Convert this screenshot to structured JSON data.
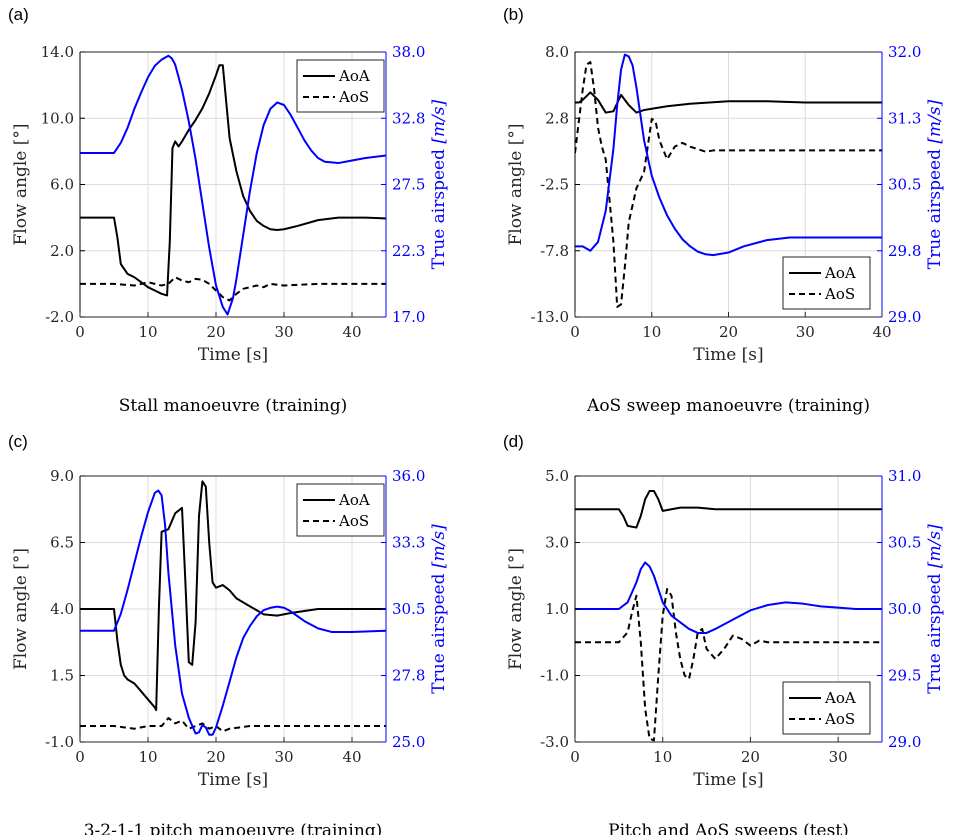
{
  "figure": {
    "accent_left": "#000000",
    "accent_right": "#0000ff",
    "grid_color": "#dcdcdc"
  },
  "chart_data": [
    {
      "panel": "(a)",
      "caption": "Stall manoeuvre (training)",
      "type": "line",
      "xlabel": "Time [s]",
      "ylabel_left": "Flow angle [°]",
      "ylabel_right": "True airspeed [m/s]",
      "xlim": [
        0,
        45
      ],
      "xticks": [
        0,
        10,
        20,
        30,
        40
      ],
      "xtick_labels": [
        "0",
        "10",
        "20",
        "30",
        "40"
      ],
      "ylim_left": [
        -2,
        14
      ],
      "yticks_left": [
        -2,
        2,
        6,
        10,
        14
      ],
      "ytick_labels_left": [
        "-2.0",
        "2.0",
        "6.0",
        "10.0",
        "14.0"
      ],
      "ylim_right": [
        17,
        38
      ],
      "yticks_right": [
        17,
        22.25,
        27.5,
        32.75,
        38
      ],
      "ytick_labels_right": [
        "17.0",
        "22.3",
        "27.5",
        "32.8",
        "38.0"
      ],
      "grid": true,
      "legend_position": "top-right",
      "series": [
        {
          "name": "AoA",
          "axis": "left",
          "style": "solid",
          "color": "#000000",
          "x": [
            0,
            5,
            5.5,
            6,
            7,
            8,
            9,
            10,
            11,
            12,
            12.8,
            13.2,
            13.6,
            14,
            14.5,
            15,
            16,
            17,
            18,
            19,
            20,
            20.5,
            21,
            21.5,
            22,
            23,
            24,
            25,
            26,
            27,
            28,
            29,
            30,
            32,
            35,
            38,
            40,
            42,
            45
          ],
          "y": [
            4.0,
            4.0,
            2.8,
            1.2,
            0.6,
            0.4,
            0.1,
            -0.2,
            -0.4,
            -0.6,
            -0.7,
            2.5,
            8.2,
            8.6,
            8.3,
            8.6,
            9.3,
            9.9,
            10.6,
            11.5,
            12.6,
            13.2,
            13.2,
            11.0,
            8.8,
            6.8,
            5.3,
            4.4,
            3.8,
            3.5,
            3.3,
            3.25,
            3.3,
            3.5,
            3.85,
            4.0,
            4.0,
            4.0,
            3.95
          ]
        },
        {
          "name": "AoS",
          "axis": "left",
          "style": "dashed",
          "color": "#000000",
          "x": [
            0,
            5,
            8,
            10,
            12,
            13,
            14,
            15,
            16,
            17,
            18,
            19,
            20,
            21,
            22,
            23,
            24,
            25,
            26,
            27,
            28,
            30,
            35,
            40,
            45
          ],
          "y": [
            0.0,
            0.0,
            -0.1,
            0.1,
            -0.1,
            0.0,
            0.4,
            0.2,
            0.1,
            0.3,
            0.25,
            0.0,
            -0.4,
            -0.8,
            -1.0,
            -0.6,
            -0.3,
            -0.2,
            -0.1,
            -0.2,
            0.0,
            -0.1,
            0.0,
            0.0,
            0.0
          ]
        },
        {
          "name": "True airspeed",
          "axis": "right",
          "style": "solid",
          "color": "#0000ff",
          "x": [
            0,
            5,
            6,
            7,
            8,
            9,
            10,
            11,
            12,
            13,
            13.5,
            14,
            15,
            16,
            17,
            18,
            19,
            20,
            21,
            21.7,
            22.5,
            23,
            24,
            25,
            26,
            27,
            28,
            29,
            30,
            31,
            32,
            33,
            34,
            35,
            36,
            38,
            40,
            42,
            45
          ],
          "y": [
            30.0,
            30.0,
            30.8,
            32.0,
            33.5,
            34.8,
            36.0,
            36.9,
            37.4,
            37.7,
            37.5,
            37.0,
            35.0,
            32.5,
            29.5,
            26.0,
            22.5,
            19.5,
            17.8,
            17.2,
            18.5,
            20.0,
            23.5,
            27.0,
            30.0,
            32.2,
            33.5,
            34.0,
            33.8,
            33.0,
            32.0,
            31.0,
            30.2,
            29.6,
            29.3,
            29.2,
            29.4,
            29.6,
            29.8
          ]
        }
      ]
    },
    {
      "panel": "(b)",
      "caption": "AoS sweep manoeuvre (training)",
      "type": "line",
      "xlabel": "Time [s]",
      "ylabel_left": "Flow angle [°]",
      "ylabel_right": "True airspeed [m/s]",
      "xlim": [
        0,
        40
      ],
      "xticks": [
        0,
        10,
        20,
        30,
        40
      ],
      "xtick_labels": [
        "0",
        "10",
        "20",
        "30",
        "40"
      ],
      "ylim_left": [
        -13,
        8
      ],
      "yticks_left": [
        -13,
        -7.75,
        -2.5,
        2.75,
        8
      ],
      "ytick_labels_left": [
        "-13.0",
        "-7.8",
        "-2.5",
        "2.8",
        "8.0"
      ],
      "ylim_right": [
        29,
        32
      ],
      "yticks_right": [
        29,
        29.75,
        30.5,
        31.25,
        32
      ],
      "ytick_labels_right": [
        "29.0",
        "29.8",
        "30.5",
        "31.3",
        "32.0"
      ],
      "grid": true,
      "legend_position": "bottom-right",
      "series": [
        {
          "name": "AoA",
          "axis": "left",
          "style": "solid",
          "color": "#000000",
          "x": [
            0,
            0.5,
            1,
            2,
            3,
            4,
            5,
            6,
            7,
            8,
            9,
            10,
            12,
            15,
            20,
            25,
            30,
            35,
            40
          ],
          "y": [
            4.0,
            4.0,
            4.2,
            4.8,
            4.2,
            3.2,
            3.3,
            4.6,
            3.8,
            3.2,
            3.4,
            3.5,
            3.7,
            3.9,
            4.1,
            4.1,
            4.0,
            4.0,
            4.0
          ]
        },
        {
          "name": "AoS",
          "axis": "left",
          "style": "dashed",
          "color": "#000000",
          "x": [
            0,
            0.5,
            1,
            1.5,
            2,
            2.5,
            3,
            3.5,
            4,
            5,
            5.5,
            6,
            6.5,
            7,
            8,
            9,
            10,
            10.5,
            11,
            12,
            13,
            14,
            15,
            16,
            17,
            18,
            20,
            25,
            30,
            35,
            40
          ],
          "y": [
            0.0,
            2.5,
            5.0,
            7.0,
            7.2,
            5.0,
            2.0,
            0.5,
            -0.5,
            -7.0,
            -12.2,
            -12.0,
            -9.0,
            -5.5,
            -2.8,
            -1.5,
            2.7,
            2.5,
            1.0,
            -0.5,
            0.5,
            0.8,
            0.5,
            0.3,
            0.1,
            0.2,
            0.2,
            0.2,
            0.2,
            0.2,
            0.2
          ]
        },
        {
          "name": "True airspeed",
          "axis": "right",
          "style": "solid",
          "color": "#0000ff",
          "x": [
            0,
            1,
            2,
            3,
            4,
            5,
            5.5,
            6,
            6.5,
            7,
            7.5,
            8,
            8.5,
            9,
            10,
            11,
            12,
            13,
            14,
            15,
            16,
            17,
            18,
            20,
            22,
            25,
            28,
            30,
            32,
            35,
            40
          ],
          "y": [
            29.8,
            29.8,
            29.75,
            29.85,
            30.2,
            30.9,
            31.4,
            31.8,
            31.97,
            31.95,
            31.85,
            31.6,
            31.3,
            31.0,
            30.6,
            30.35,
            30.15,
            30.0,
            29.88,
            29.8,
            29.74,
            29.71,
            29.7,
            29.73,
            29.8,
            29.87,
            29.9,
            29.9,
            29.9,
            29.9,
            29.9
          ]
        }
      ]
    },
    {
      "panel": "(c)",
      "caption": "3-2-1-1 pitch manoeuvre (training)",
      "type": "line",
      "xlabel": "Time [s]",
      "ylabel_left": "Flow angle [°]",
      "ylabel_right": "True airspeed [m/s]",
      "xlim": [
        0,
        45
      ],
      "xticks": [
        0,
        10,
        20,
        30,
        40
      ],
      "xtick_labels": [
        "0",
        "10",
        "20",
        "30",
        "40"
      ],
      "ylim_left": [
        -1,
        9
      ],
      "yticks_left": [
        -1,
        1.5,
        4,
        6.5,
        9
      ],
      "ytick_labels_left": [
        "-1.0",
        "1.5",
        "4.0",
        "6.5",
        "9.0"
      ],
      "ylim_right": [
        25,
        36
      ],
      "yticks_right": [
        25,
        27.75,
        30.5,
        33.25,
        36
      ],
      "ytick_labels_right": [
        "25.0",
        "27.8",
        "30.5",
        "33.3",
        "36.0"
      ],
      "grid": true,
      "legend_position": "top-right",
      "series": [
        {
          "name": "AoA",
          "axis": "left",
          "style": "solid",
          "color": "#000000",
          "x": [
            0,
            5,
            5.5,
            6,
            6.5,
            7,
            8,
            9,
            10,
            11,
            11.2,
            11.6,
            12,
            13,
            14,
            15,
            15.5,
            16,
            16.5,
            17,
            17.5,
            18,
            18.5,
            19,
            19.5,
            20,
            21,
            22,
            23,
            25,
            27,
            29,
            31,
            35,
            40,
            45
          ],
          "y": [
            4.0,
            4.0,
            2.8,
            1.9,
            1.5,
            1.35,
            1.2,
            0.9,
            0.6,
            0.3,
            0.2,
            4.0,
            6.9,
            7.0,
            7.6,
            7.8,
            5.0,
            2.0,
            1.9,
            3.5,
            7.5,
            8.8,
            8.6,
            6.5,
            5.0,
            4.8,
            4.9,
            4.7,
            4.4,
            4.1,
            3.8,
            3.75,
            3.85,
            4.0,
            4.0,
            4.0
          ]
        },
        {
          "name": "AoS",
          "axis": "left",
          "style": "dashed",
          "color": "#000000",
          "x": [
            0,
            5,
            8,
            10,
            12,
            13,
            14,
            15,
            16,
            17,
            18,
            19,
            20,
            21,
            22,
            25,
            30,
            35,
            40,
            45
          ],
          "y": [
            -0.4,
            -0.4,
            -0.5,
            -0.4,
            -0.4,
            -0.1,
            -0.3,
            -0.2,
            -0.5,
            -0.4,
            -0.3,
            -0.5,
            -0.4,
            -0.6,
            -0.5,
            -0.4,
            -0.4,
            -0.4,
            -0.4,
            -0.4
          ]
        },
        {
          "name": "True airspeed",
          "axis": "right",
          "style": "solid",
          "color": "#0000ff",
          "x": [
            0,
            5,
            6,
            7,
            8,
            9,
            10,
            11,
            11.5,
            12,
            12.5,
            13,
            14,
            15,
            16,
            17,
            17.5,
            18,
            18.5,
            19,
            19.5,
            20,
            21,
            22,
            23,
            24,
            25,
            26,
            27,
            28,
            29,
            30,
            31,
            32,
            33,
            34,
            35,
            37,
            40,
            45
          ],
          "y": [
            29.6,
            29.6,
            30.3,
            31.3,
            32.4,
            33.5,
            34.5,
            35.3,
            35.4,
            35.2,
            34.0,
            32.0,
            29.0,
            27.0,
            26.0,
            25.35,
            25.4,
            25.7,
            25.6,
            25.3,
            25.3,
            25.6,
            26.5,
            27.5,
            28.5,
            29.3,
            29.8,
            30.2,
            30.45,
            30.55,
            30.6,
            30.55,
            30.4,
            30.2,
            30.0,
            29.85,
            29.7,
            29.55,
            29.55,
            29.6
          ]
        }
      ]
    },
    {
      "panel": "(d)",
      "caption": "Pitch and AoS sweeps (test)",
      "type": "line",
      "xlabel": "Time [s]",
      "ylabel_left": "Flow angle [°]",
      "ylabel_right": "True airspeed [m/s]",
      "xlim": [
        0,
        35
      ],
      "xticks": [
        0,
        10,
        20,
        30
      ],
      "xtick_labels": [
        "0",
        "10",
        "20",
        "30"
      ],
      "ylim_left": [
        -3,
        5
      ],
      "yticks_left": [
        -3,
        -1,
        1,
        3,
        5
      ],
      "ytick_labels_left": [
        "-3.0",
        "-1.0",
        "1.0",
        "3.0",
        "5.0"
      ],
      "ylim_right": [
        29,
        31
      ],
      "yticks_right": [
        29,
        29.5,
        30,
        30.5,
        31
      ],
      "ytick_labels_right": [
        "29.0",
        "29.5",
        "30.0",
        "30.5",
        "31.0"
      ],
      "grid": true,
      "legend_position": "bottom-right",
      "series": [
        {
          "name": "AoA",
          "axis": "left",
          "style": "solid",
          "color": "#000000",
          "x": [
            0,
            5,
            5.5,
            6,
            7,
            7.5,
            8,
            8.5,
            9,
            9.5,
            10,
            11,
            12,
            14,
            16,
            20,
            25,
            30,
            35
          ],
          "y": [
            4.0,
            4.0,
            3.8,
            3.5,
            3.45,
            3.8,
            4.3,
            4.55,
            4.55,
            4.3,
            3.95,
            4.0,
            4.05,
            4.05,
            4.0,
            4.0,
            4.0,
            4.0,
            4.0
          ]
        },
        {
          "name": "AoS",
          "axis": "left",
          "style": "dashed",
          "color": "#000000",
          "x": [
            0,
            5,
            6,
            6.5,
            7,
            7.5,
            8,
            8.5,
            9,
            9.5,
            10,
            10.5,
            11,
            11.5,
            12,
            12.5,
            13,
            13.5,
            14,
            14.5,
            15,
            16,
            17,
            18,
            19,
            20,
            21,
            22,
            25,
            30,
            35
          ],
          "y": [
            0.0,
            0.0,
            0.3,
            0.9,
            1.4,
            0.0,
            -2.0,
            -2.9,
            -2.95,
            -1.0,
            0.8,
            1.6,
            1.4,
            0.3,
            -0.5,
            -1.0,
            -1.1,
            -0.5,
            0.3,
            0.4,
            -0.2,
            -0.5,
            -0.2,
            0.2,
            0.1,
            -0.1,
            0.05,
            0.0,
            0.0,
            0.0,
            0.0
          ]
        },
        {
          "name": "True airspeed",
          "axis": "right",
          "style": "solid",
          "color": "#0000ff",
          "x": [
            0,
            5,
            6,
            7,
            7.5,
            8,
            8.5,
            9,
            10,
            11,
            12,
            13,
            14,
            15,
            16,
            18,
            20,
            22,
            24,
            26,
            28,
            30,
            32,
            35
          ],
          "y": [
            30.0,
            30.0,
            30.05,
            30.2,
            30.3,
            30.35,
            30.32,
            30.25,
            30.05,
            29.95,
            29.9,
            29.85,
            29.82,
            29.82,
            29.85,
            29.92,
            29.99,
            30.03,
            30.05,
            30.04,
            30.02,
            30.01,
            30.0,
            30.0
          ]
        }
      ]
    }
  ]
}
